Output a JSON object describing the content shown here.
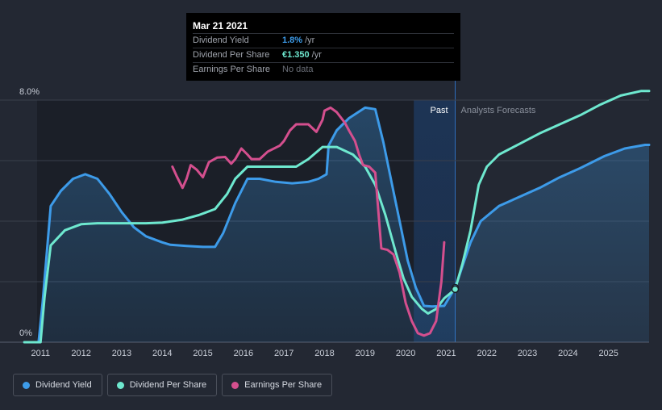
{
  "tooltip": {
    "date": "Mar 21 2021",
    "rows": [
      {
        "label": "Dividend Yield",
        "value": "1.8%",
        "unit": "/yr",
        "color": "#3d9be9"
      },
      {
        "label": "Dividend Per Share",
        "value": "€1.350",
        "unit": "/yr",
        "color": "#6ee8cf"
      },
      {
        "label": "Earnings Per Share",
        "value": "No data",
        "unit": "",
        "color": "#6b6f78"
      }
    ]
  },
  "chart_data": {
    "type": "line",
    "y_tick_labels": [
      "8.0%",
      "0%"
    ],
    "ylim": [
      0,
      8
    ],
    "xlim": [
      2010.0,
      2026.0
    ],
    "x_tick_labels": [
      "2011",
      "2012",
      "2013",
      "2014",
      "2015",
      "2016",
      "2017",
      "2018",
      "2019",
      "2020",
      "2021",
      "2022",
      "2023",
      "2024",
      "2025"
    ],
    "x_ticks": [
      2011,
      2012,
      2013,
      2014,
      2015,
      2016,
      2017,
      2018,
      2019,
      2020,
      2021,
      2022,
      2023,
      2024,
      2025
    ],
    "past_label": "Past",
    "forecast_label": "Analysts Forecasts",
    "highlight_start": 2020.2,
    "today": 2021.22,
    "grid": true,
    "series": [
      {
        "name": "Dividend Yield",
        "color": "#3d9be9",
        "fill": true,
        "points": [
          [
            2010.6,
            0
          ],
          [
            2010.95,
            0
          ],
          [
            2011.05,
            1.3
          ],
          [
            2011.25,
            4.5
          ],
          [
            2011.5,
            5.0
          ],
          [
            2011.8,
            5.4
          ],
          [
            2012.1,
            5.55
          ],
          [
            2012.4,
            5.4
          ],
          [
            2012.7,
            4.9
          ],
          [
            2013.0,
            4.3
          ],
          [
            2013.3,
            3.8
          ],
          [
            2013.6,
            3.5
          ],
          [
            2014.0,
            3.3
          ],
          [
            2014.2,
            3.22
          ],
          [
            2014.6,
            3.18
          ],
          [
            2015.0,
            3.15
          ],
          [
            2015.3,
            3.15
          ],
          [
            2015.5,
            3.6
          ],
          [
            2015.8,
            4.6
          ],
          [
            2016.1,
            5.4
          ],
          [
            2016.4,
            5.4
          ],
          [
            2016.8,
            5.3
          ],
          [
            2017.2,
            5.25
          ],
          [
            2017.6,
            5.3
          ],
          [
            2017.85,
            5.4
          ],
          [
            2018.05,
            5.55
          ],
          [
            2018.1,
            6.5
          ],
          [
            2018.3,
            7.0
          ],
          [
            2018.6,
            7.4
          ],
          [
            2019.0,
            7.75
          ],
          [
            2019.25,
            7.7
          ],
          [
            2019.45,
            6.6
          ],
          [
            2019.65,
            5.3
          ],
          [
            2019.85,
            4.0
          ],
          [
            2020.05,
            2.7
          ],
          [
            2020.25,
            1.8
          ],
          [
            2020.45,
            1.2
          ],
          [
            2020.65,
            1.18
          ],
          [
            2020.95,
            1.2
          ],
          [
            2021.22,
            1.8
          ],
          [
            2021.6,
            3.3
          ],
          [
            2021.85,
            4.0
          ],
          [
            2022.3,
            4.5
          ],
          [
            2022.8,
            4.8
          ],
          [
            2023.3,
            5.1
          ],
          [
            2023.8,
            5.45
          ],
          [
            2024.3,
            5.75
          ],
          [
            2024.9,
            6.15
          ],
          [
            2025.4,
            6.4
          ],
          [
            2025.9,
            6.52
          ],
          [
            2026.0,
            6.52
          ]
        ]
      },
      {
        "name": "Dividend Per Share",
        "color": "#6ee8cf",
        "fill": false,
        "points": [
          [
            2010.6,
            0
          ],
          [
            2011.0,
            0
          ],
          [
            2011.1,
            1.5
          ],
          [
            2011.25,
            3.2
          ],
          [
            2011.6,
            3.7
          ],
          [
            2012.0,
            3.9
          ],
          [
            2012.4,
            3.93
          ],
          [
            2013.0,
            3.93
          ],
          [
            2013.6,
            3.93
          ],
          [
            2014.0,
            3.95
          ],
          [
            2014.5,
            4.05
          ],
          [
            2014.9,
            4.2
          ],
          [
            2015.3,
            4.4
          ],
          [
            2015.6,
            4.9
          ],
          [
            2015.8,
            5.4
          ],
          [
            2016.1,
            5.8
          ],
          [
            2016.5,
            5.8
          ],
          [
            2017.0,
            5.8
          ],
          [
            2017.3,
            5.8
          ],
          [
            2017.6,
            6.05
          ],
          [
            2017.95,
            6.45
          ],
          [
            2018.3,
            6.45
          ],
          [
            2018.7,
            6.2
          ],
          [
            2019.0,
            5.8
          ],
          [
            2019.25,
            5.2
          ],
          [
            2019.5,
            4.2
          ],
          [
            2019.75,
            3.0
          ],
          [
            2019.95,
            2.1
          ],
          [
            2020.15,
            1.5
          ],
          [
            2020.4,
            1.1
          ],
          [
            2020.55,
            0.95
          ],
          [
            2020.75,
            1.1
          ],
          [
            2020.95,
            1.45
          ],
          [
            2021.22,
            1.75
          ],
          [
            2021.4,
            2.6
          ],
          [
            2021.6,
            3.7
          ],
          [
            2021.8,
            5.2
          ],
          [
            2022.0,
            5.8
          ],
          [
            2022.3,
            6.2
          ],
          [
            2022.8,
            6.55
          ],
          [
            2023.3,
            6.9
          ],
          [
            2023.8,
            7.2
          ],
          [
            2024.3,
            7.5
          ],
          [
            2024.8,
            7.85
          ],
          [
            2025.3,
            8.15
          ],
          [
            2025.8,
            8.3
          ],
          [
            2026.0,
            8.3
          ]
        ]
      },
      {
        "name": "Earnings Per Share",
        "color": "#d44f8e",
        "fill": false,
        "points": [
          [
            2014.25,
            5.8
          ],
          [
            2014.35,
            5.5
          ],
          [
            2014.5,
            5.1
          ],
          [
            2014.6,
            5.4
          ],
          [
            2014.7,
            5.85
          ],
          [
            2014.85,
            5.7
          ],
          [
            2015.0,
            5.45
          ],
          [
            2015.15,
            5.95
          ],
          [
            2015.35,
            6.1
          ],
          [
            2015.55,
            6.12
          ],
          [
            2015.7,
            5.9
          ],
          [
            2015.8,
            6.05
          ],
          [
            2015.95,
            6.4
          ],
          [
            2016.1,
            6.2
          ],
          [
            2016.2,
            6.05
          ],
          [
            2016.4,
            6.05
          ],
          [
            2016.6,
            6.3
          ],
          [
            2016.9,
            6.5
          ],
          [
            2017.0,
            6.65
          ],
          [
            2017.15,
            7.0
          ],
          [
            2017.3,
            7.2
          ],
          [
            2017.6,
            7.2
          ],
          [
            2017.8,
            6.95
          ],
          [
            2017.95,
            7.35
          ],
          [
            2018.0,
            7.65
          ],
          [
            2018.15,
            7.75
          ],
          [
            2018.3,
            7.6
          ],
          [
            2018.5,
            7.25
          ],
          [
            2018.6,
            7.0
          ],
          [
            2018.75,
            6.65
          ],
          [
            2018.85,
            6.2
          ],
          [
            2018.95,
            5.85
          ],
          [
            2019.1,
            5.8
          ],
          [
            2019.25,
            5.6
          ],
          [
            2019.4,
            3.1
          ],
          [
            2019.55,
            3.05
          ],
          [
            2019.7,
            2.9
          ],
          [
            2019.85,
            2.3
          ],
          [
            2020.0,
            1.3
          ],
          [
            2020.15,
            0.7
          ],
          [
            2020.3,
            0.3
          ],
          [
            2020.45,
            0.22
          ],
          [
            2020.6,
            0.3
          ],
          [
            2020.75,
            0.7
          ],
          [
            2020.88,
            2.0
          ],
          [
            2020.95,
            3.3
          ]
        ]
      }
    ]
  },
  "legend": [
    {
      "label": "Dividend Yield",
      "color": "#3d9be9"
    },
    {
      "label": "Dividend Per Share",
      "color": "#6ee8cf"
    },
    {
      "label": "Earnings Per Share",
      "color": "#d44f8e"
    }
  ]
}
